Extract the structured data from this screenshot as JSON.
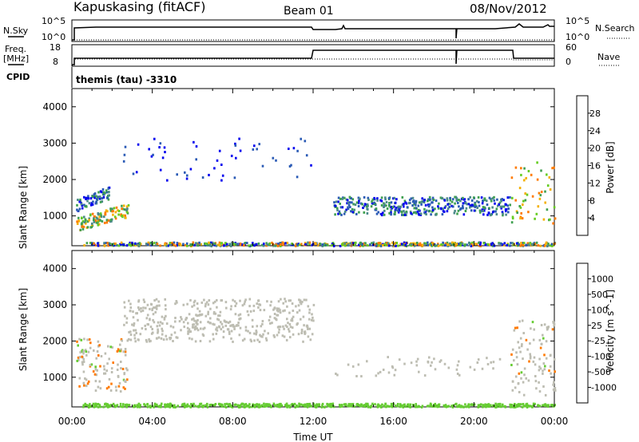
{
  "header": {
    "station": "Kapuskasing (fitACF)",
    "beam": "Beam 01",
    "date": "08/Nov/2012"
  },
  "top_panels": {
    "nsky_label": "N.Sky",
    "nsky_ticks": [
      "10^5",
      "10^0"
    ],
    "nsearch_label": "N.Search",
    "nsearch_ticks": [
      "10^5",
      "10^0"
    ],
    "freq_label": [
      "Freq.",
      "[MHz]"
    ],
    "freq_ticks": [
      "18",
      "8"
    ],
    "nave_label": "Nave",
    "nave_ticks": [
      "60",
      "0"
    ],
    "cpid_label": "CPID",
    "cpid_value": "themis (tau) -3310"
  },
  "chart_data": [
    {
      "type": "heatmap",
      "name": "power",
      "ylabel": "Slant Range [km]",
      "xlabel": "Time UT",
      "xlim": [
        0,
        24
      ],
      "ylim": [
        180,
        4500
      ],
      "x_ticks": [
        "00:00",
        "04:00",
        "08:00",
        "12:00",
        "16:00",
        "20:00",
        "00:00"
      ],
      "y_ticks": [
        "1000",
        "2000",
        "3000",
        "4000"
      ],
      "colorbar": {
        "label": "Power [dB]",
        "ticks": [
          "4",
          "8",
          "12",
          "16",
          "20",
          "24",
          "28"
        ],
        "colors": [
          "#0000ee",
          "#2a5ab5",
          "#4d8a8a",
          "#3fa050",
          "#66cc22",
          "#f4b000",
          "#ff7a00",
          "#ff3300"
        ]
      },
      "echo_regions": [
        {
          "t": [
            0.2,
            1.9
          ],
          "r": [
            1100,
            1900
          ],
          "note": "lower-edge green/orange band rising"
        },
        {
          "t": [
            0.2,
            2.8
          ],
          "r": [
            550,
            1200
          ],
          "note": "orange/yellow band"
        },
        {
          "t": [
            2.5,
            12.0
          ],
          "r": [
            2000,
            3200
          ],
          "note": "sparse blue echoes"
        },
        {
          "t": [
            13.0,
            21.8
          ],
          "r": [
            1050,
            1550
          ],
          "note": "blue/green band"
        },
        {
          "t": [
            21.8,
            24.0
          ],
          "r": [
            800,
            2600
          ],
          "note": "orange/yellow intensification"
        },
        {
          "t": [
            0.5,
            24.0
          ],
          "r": [
            200,
            300
          ],
          "note": "near-range ground echoes"
        }
      ]
    },
    {
      "type": "heatmap",
      "name": "velocity",
      "ylabel": "Slant Range [km]",
      "xlabel": "Time UT",
      "xlim": [
        0,
        24
      ],
      "ylim": [
        180,
        4500
      ],
      "x_ticks": [
        "00:00",
        "04:00",
        "08:00",
        "12:00",
        "16:00",
        "20:00",
        "00:00"
      ],
      "y_ticks": [
        "1000",
        "2000",
        "3000",
        "4000"
      ],
      "colorbar": {
        "label": "Velocity [m s^-1]",
        "ticks": [
          "1000",
          "500",
          "100",
          "25",
          "-25",
          "-100",
          "-500",
          "-1000"
        ],
        "colors": [
          "#1a3fb5",
          "#2f6fa0",
          "#3a9a5a",
          "#66cc33",
          "#bdbdb2",
          "#f4b000",
          "#ff7a00",
          "#ff3300",
          "#ee0000"
        ]
      },
      "echo_regions": [
        {
          "t": [
            0.2,
            2.8
          ],
          "r": [
            600,
            2100
          ],
          "note": "gray with orange patches"
        },
        {
          "t": [
            2.5,
            12.0
          ],
          "r": [
            2000,
            3200
          ],
          "note": "sparse gray"
        },
        {
          "t": [
            13.0,
            21.8
          ],
          "r": [
            1050,
            1600
          ],
          "note": "gray band"
        },
        {
          "t": [
            21.8,
            24.0
          ],
          "r": [
            500,
            2600
          ],
          "note": "gray with orange/green"
        },
        {
          "t": [
            0.5,
            24.0
          ],
          "r": [
            200,
            300
          ],
          "note": "green near-range"
        }
      ]
    }
  ]
}
